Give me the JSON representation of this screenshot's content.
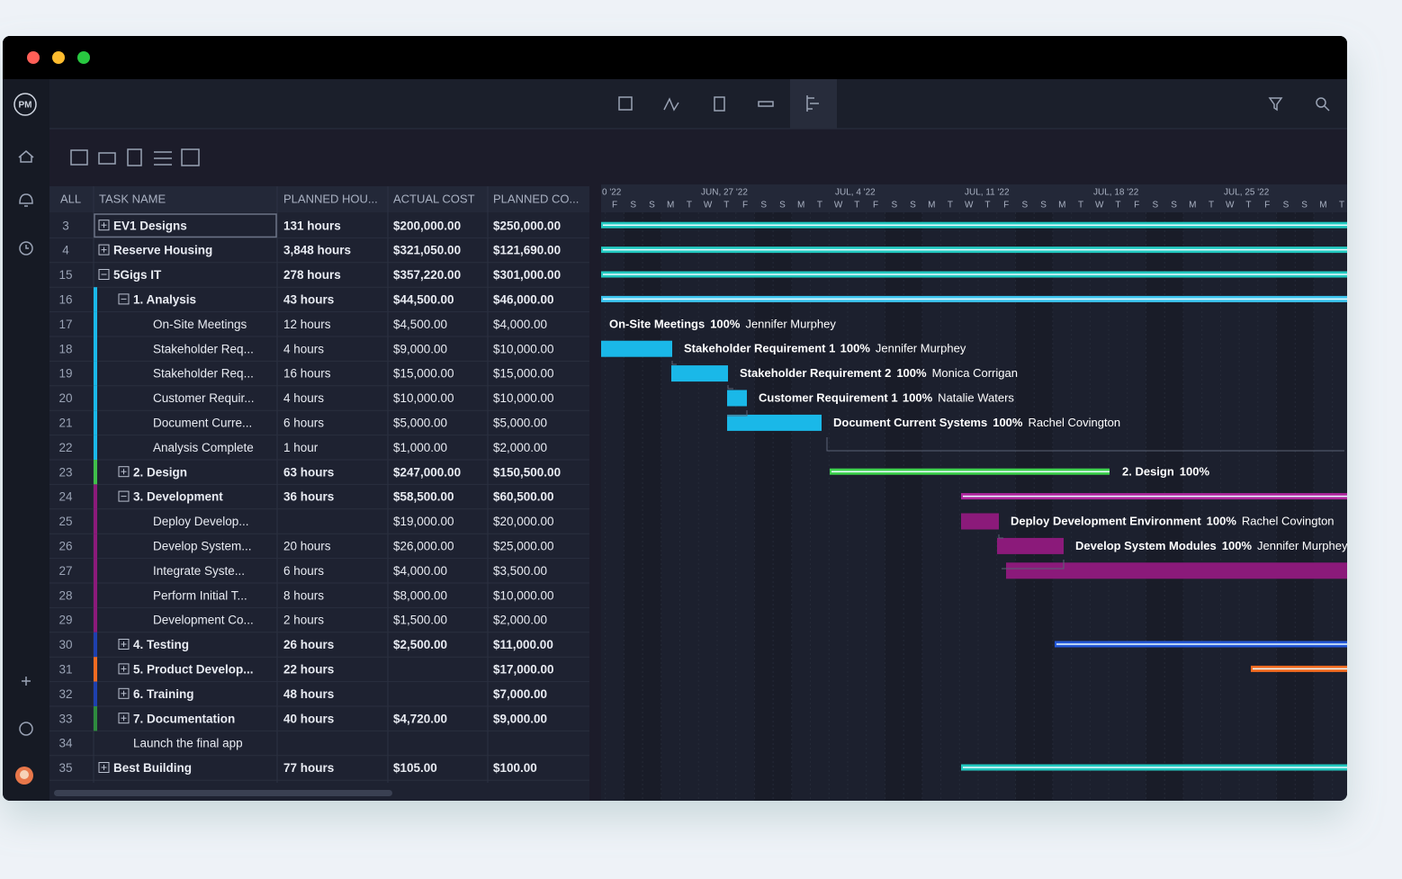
{
  "window": {
    "logo": "PM"
  },
  "table": {
    "columns": [
      "ALL",
      "TASK NAME",
      "PLANNED HOU...",
      "ACTUAL COST",
      "PLANNED CO..."
    ],
    "rows": [
      [
        3,
        "EV1 Designs",
        "131 hours",
        "$200,000.00",
        "$250,000.00"
      ],
      [
        4,
        "Reserve Housing",
        "3,848 hours",
        "$321,050.00",
        "$121,690.00"
      ],
      [
        15,
        "5Gigs IT",
        "278 hours",
        "$357,220.00",
        "$301,000.00"
      ],
      [
        16,
        "1. Analysis",
        "43 hours",
        "$44,500.00",
        "$46,000.00"
      ],
      [
        17,
        "On-Site Meetings",
        "12 hours",
        "$4,500.00",
        "$4,000.00"
      ],
      [
        18,
        "Stakeholder Req...",
        "4 hours",
        "$9,000.00",
        "$10,000.00"
      ],
      [
        19,
        "Stakeholder Req...",
        "16 hours",
        "$15,000.00",
        "$15,000.00"
      ],
      [
        20,
        "Customer Requir...",
        "4 hours",
        "$10,000.00",
        "$10,000.00"
      ],
      [
        21,
        "Document Curre...",
        "6 hours",
        "$5,000.00",
        "$5,000.00"
      ],
      [
        22,
        "Analysis Complete",
        "1 hour",
        "$1,000.00",
        "$2,000.00"
      ],
      [
        23,
        "2. Design",
        "63 hours",
        "$247,000.00",
        "$150,500.00"
      ],
      [
        24,
        "3. Development",
        "36 hours",
        "$58,500.00",
        "$60,500.00"
      ],
      [
        25,
        "Deploy Develop...",
        null,
        "$19,000.00",
        "$20,000.00"
      ],
      [
        26,
        "Develop System...",
        "20 hours",
        "$26,000.00",
        "$25,000.00"
      ],
      [
        27,
        "Integrate Syste...",
        "6 hours",
        "$4,000.00",
        "$3,500.00"
      ],
      [
        28,
        "Perform Initial T...",
        "8 hours",
        "$8,000.00",
        "$10,000.00"
      ],
      [
        29,
        "Development Co...",
        "2 hours",
        "$1,500.00",
        "$2,000.00"
      ],
      [
        30,
        "4. Testing",
        "26 hours",
        "$2,500.00",
        "$11,000.00"
      ],
      [
        31,
        "5. Product Develop...",
        "22 hours",
        null,
        "$17,000.00"
      ],
      [
        32,
        "6. Training",
        "48 hours",
        null,
        "$7,000.00"
      ],
      [
        33,
        "7. Documentation",
        "40 hours",
        "$4,720.00",
        "$9,000.00"
      ],
      [
        34,
        "Launch the final app",
        null,
        null,
        null
      ],
      [
        35,
        "Best Building",
        "77 hours",
        "$105.00",
        "$100.00"
      ]
    ]
  },
  "gantt": {
    "weeks": [
      "0 '22",
      "JUN, 27 '22",
      "JUL, 4 '22",
      "JUL, 11 '22",
      "JUL, 18 '22",
      "JUL, 25 '22"
    ],
    "days": [
      "F",
      "S",
      "S",
      "M",
      "T",
      "W",
      "T",
      "F",
      "S",
      "S",
      "M",
      "T",
      "W",
      "T",
      "F",
      "S",
      "S",
      "M",
      "T",
      "W",
      "T",
      "F",
      "S",
      "S",
      "M",
      "T",
      "W",
      "T",
      "F",
      "S",
      "S",
      "M",
      "T",
      "W",
      "T",
      "F",
      "S",
      "S",
      "M",
      "T"
    ],
    "labels": [
      {
        "task": "On-Site Meetings",
        "progress": "100%",
        "assignee": "Jennifer Murphey"
      },
      {
        "task": "Stakeholder Requirement 1",
        "progress": "100%",
        "assignee": "Jennifer Murphey"
      },
      {
        "task": "Stakeholder Requirement 2",
        "progress": "100%",
        "assignee": "Monica Corrigan"
      },
      {
        "task": "Customer Requirement 1",
        "progress": "100%",
        "assignee": "Natalie Waters"
      },
      {
        "task": "Document Current Systems",
        "progress": "100%",
        "assignee": "Rachel Covington"
      },
      {
        "task": "2. Design",
        "progress": "100%"
      },
      {
        "task": "Deploy Development Environment",
        "progress": "100%",
        "assignee": "Rachel Covington"
      },
      {
        "task": "Develop System Modules",
        "progress": "100%",
        "assignee": "Jennifer Murphey"
      }
    ]
  }
}
